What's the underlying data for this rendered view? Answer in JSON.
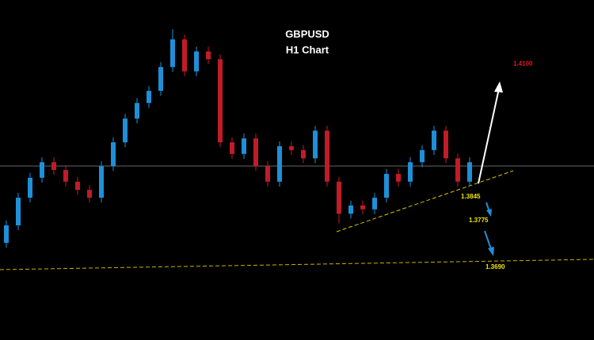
{
  "chart_data": {
    "type": "candlestick",
    "title": "GBPUSD",
    "subtitle": "H1 Chart",
    "ylim": [
      1.36,
      1.43
    ],
    "up_color": "#1f8fd8",
    "down_color": "#c01c28",
    "open": [
      1.38,
      1.3836,
      1.3893,
      1.3934,
      1.3966,
      1.395,
      1.3926,
      1.3909,
      1.3893,
      1.3958,
      1.4007,
      1.4056,
      1.4088,
      1.4113,
      1.4162,
      1.4219,
      1.4153,
      1.4194,
      1.4178,
      1.4007,
      1.3983,
      1.4015,
      1.3958,
      1.3926,
      1.3999,
      1.3991,
      1.3974,
      1.4031,
      1.3926,
      1.386,
      1.3877,
      1.3869,
      1.3893,
      1.3942,
      1.3926,
      1.3966,
      1.3991,
      1.4031,
      1.3974,
      1.3926
    ],
    "high": [
      1.3846,
      1.3903,
      1.3944,
      1.3976,
      1.3976,
      1.396,
      1.3936,
      1.3919,
      1.3968,
      1.4017,
      1.4066,
      1.4098,
      1.4123,
      1.4172,
      1.424,
      1.4229,
      1.4204,
      1.4204,
      1.4188,
      1.4017,
      1.4025,
      1.4025,
      1.3968,
      1.4009,
      1.4009,
      1.4001,
      1.4041,
      1.4041,
      1.3936,
      1.3887,
      1.3887,
      1.3903,
      1.3952,
      1.3952,
      1.3976,
      1.4001,
      1.4041,
      1.4041,
      1.3984,
      1.3976
    ],
    "low": [
      1.379,
      1.3826,
      1.3883,
      1.3924,
      1.394,
      1.3916,
      1.3899,
      1.3883,
      1.3883,
      1.3948,
      1.3997,
      1.4046,
      1.4078,
      1.4103,
      1.4152,
      1.4143,
      1.4143,
      1.4168,
      1.3997,
      1.3973,
      1.3973,
      1.3948,
      1.3916,
      1.3916,
      1.3981,
      1.3964,
      1.3964,
      1.3916,
      1.384,
      1.385,
      1.3859,
      1.3859,
      1.3883,
      1.3916,
      1.3916,
      1.3956,
      1.3981,
      1.3964,
      1.3916,
      1.3916
    ],
    "close": [
      1.3836,
      1.3893,
      1.3934,
      1.3966,
      1.395,
      1.3926,
      1.3909,
      1.3893,
      1.3958,
      1.4007,
      1.4056,
      1.4088,
      1.4113,
      1.4162,
      1.4219,
      1.4153,
      1.4194,
      1.4178,
      1.4007,
      1.3983,
      1.4015,
      1.3958,
      1.3926,
      1.3999,
      1.3991,
      1.3974,
      1.4031,
      1.3926,
      1.386,
      1.3877,
      1.3869,
      1.3893,
      1.3942,
      1.3926,
      1.3966,
      1.3991,
      1.4031,
      1.3974,
      1.3926,
      1.3966
    ],
    "annotations": [
      {
        "text": "1.4100",
        "color": "#e0141e"
      },
      {
        "text": "1.3845",
        "color": "#f2e600"
      },
      {
        "text": "1.3775",
        "color": "#f2e600"
      },
      {
        "text": "1.3690",
        "color": "#f2e600"
      }
    ]
  }
}
